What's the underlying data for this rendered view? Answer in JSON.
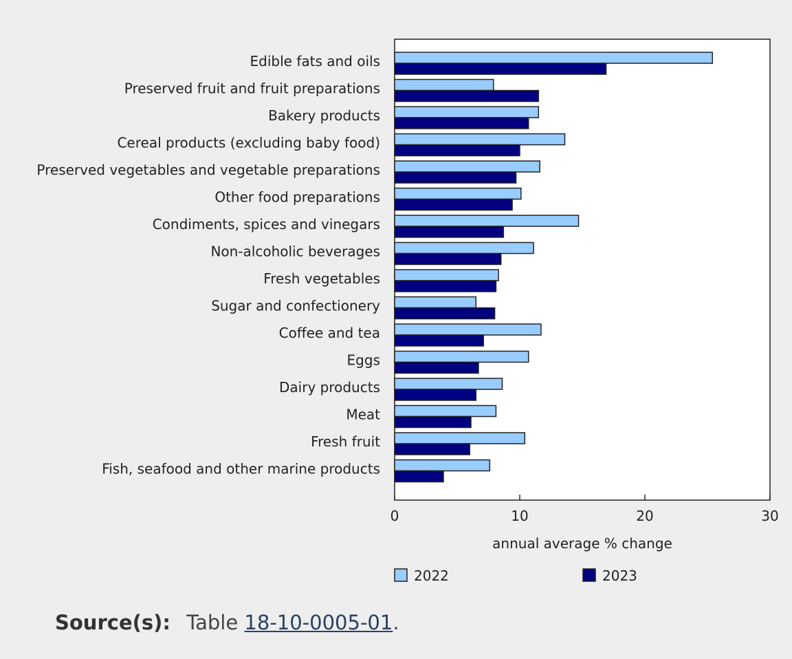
{
  "chart_data": {
    "type": "bar",
    "orientation": "horizontal",
    "title": "",
    "xlabel": "annual average % change",
    "ylabel": "",
    "xlim": [
      0,
      30
    ],
    "xticks": [
      0,
      10,
      20,
      30
    ],
    "grid": false,
    "legend_position": "bottom",
    "categories": [
      "Edible fats and oils",
      "Preserved fruit and fruit preparations",
      "Bakery products",
      "Cereal products (excluding baby food)",
      "Preserved vegetables and vegetable preparations",
      "Other food preparations",
      "Condiments, spices and vinegars",
      "Non-alcoholic beverages",
      "Fresh vegetables",
      "Sugar and confectionery",
      "Coffee and tea",
      "Eggs",
      "Dairy products",
      "Meat",
      "Fresh fruit",
      "Fish, seafood and other marine products"
    ],
    "series": [
      {
        "name": "2022",
        "color": "#99ccff",
        "values": [
          25.4,
          7.9,
          11.5,
          13.6,
          11.6,
          10.1,
          14.7,
          11.1,
          8.3,
          6.5,
          11.7,
          10.7,
          8.6,
          8.1,
          10.4,
          7.6
        ]
      },
      {
        "name": "2023",
        "color": "#000080",
        "values": [
          16.9,
          11.5,
          10.7,
          10.0,
          9.7,
          9.4,
          8.7,
          8.5,
          8.1,
          8.0,
          7.1,
          6.7,
          6.5,
          6.1,
          6.0,
          3.9
        ]
      }
    ]
  },
  "source": {
    "label": "Source(s):",
    "prefix": "Table",
    "link_text": "18-10-0005-01",
    "suffix": "."
  },
  "colors": {
    "background": "#eeeeee",
    "plot_background": "#ffffff",
    "bar_outline": "#222222",
    "link": "#284162"
  }
}
